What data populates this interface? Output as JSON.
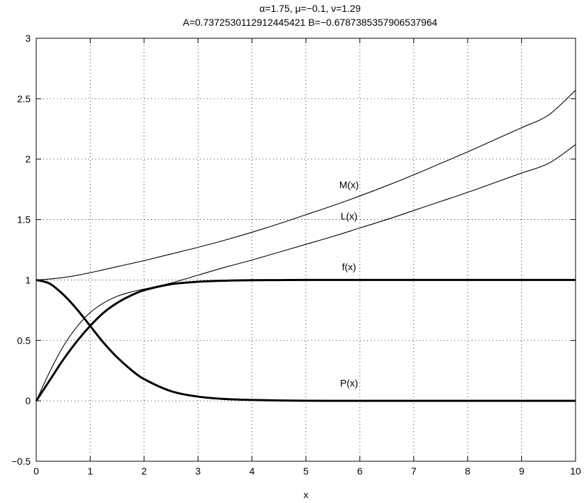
{
  "chart_data": {
    "type": "line",
    "title": "α=1.75, μ=−0.1, ν=1.29",
    "subtitle": "A=0.7372530112912445421   B=−0.6787385357906537964",
    "xlabel": "x",
    "ylabel": "",
    "xlim": [
      0,
      10
    ],
    "ylim": [
      -0.5,
      3
    ],
    "grid": true,
    "x_ticks": [
      "0",
      "1",
      "2",
      "3",
      "4",
      "5",
      "6",
      "7",
      "8",
      "9",
      "10"
    ],
    "y_ticks": [
      "−0.5",
      "0",
      "0.5",
      "1",
      "1.5",
      "2",
      "2.5",
      "3"
    ],
    "x": [
      0,
      0.25,
      0.5,
      0.75,
      1,
      1.25,
      1.5,
      1.75,
      2,
      2.5,
      3,
      3.5,
      4,
      4.5,
      5,
      5.5,
      6,
      6.5,
      7,
      7.5,
      8,
      8.5,
      9,
      9.5,
      10
    ],
    "series": [
      {
        "name": "M(x)",
        "label_at": [
          5.8,
          1.76
        ],
        "linewidth": "thin",
        "values": [
          1.0,
          1.008,
          1.02,
          1.038,
          1.06,
          1.085,
          1.11,
          1.135,
          1.16,
          1.215,
          1.27,
          1.33,
          1.395,
          1.465,
          1.54,
          1.615,
          1.695,
          1.78,
          1.87,
          1.965,
          2.06,
          2.16,
          2.26,
          2.365,
          2.57
        ]
      },
      {
        "name": "L(x)",
        "label_at": [
          5.8,
          1.5
        ],
        "linewidth": "thin",
        "values": [
          0.0,
          0.24,
          0.45,
          0.61,
          0.73,
          0.81,
          0.865,
          0.9,
          0.925,
          0.975,
          1.04,
          1.105,
          1.165,
          1.23,
          1.295,
          1.36,
          1.43,
          1.5,
          1.575,
          1.65,
          1.725,
          1.805,
          1.885,
          1.965,
          2.12
        ]
      },
      {
        "name": "f(x)",
        "label_at": [
          5.8,
          1.08
        ],
        "linewidth": "thick",
        "values": [
          0.0,
          0.17,
          0.34,
          0.49,
          0.62,
          0.73,
          0.81,
          0.87,
          0.915,
          0.965,
          0.985,
          0.994,
          0.998,
          0.999,
          1.0,
          1.0,
          1.0,
          1.0,
          1.0,
          1.0,
          1.0,
          1.0,
          1.0,
          1.0,
          1.0
        ]
      },
      {
        "name": "P(x)",
        "label_at": [
          5.8,
          0.12
        ],
        "linewidth": "thick",
        "values": [
          1.0,
          0.97,
          0.88,
          0.76,
          0.62,
          0.48,
          0.36,
          0.26,
          0.18,
          0.08,
          0.035,
          0.015,
          0.007,
          0.003,
          0.001,
          0.0,
          0.0,
          0.0,
          0.0,
          0.0,
          0.0,
          0.0,
          0.0,
          0.0,
          0.0
        ]
      }
    ]
  }
}
